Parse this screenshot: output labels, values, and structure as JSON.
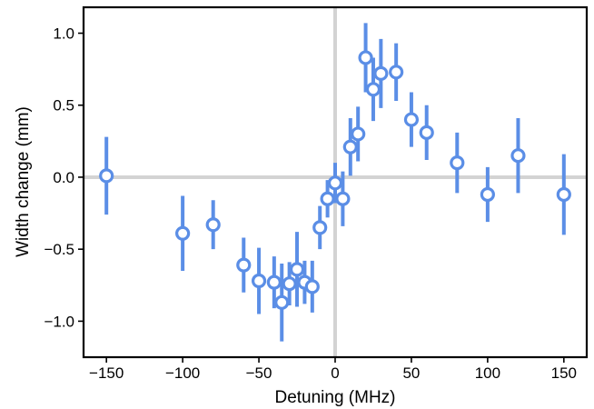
{
  "chart_data": {
    "type": "scatter",
    "title": "",
    "xlabel": "Detuning (MHz)",
    "ylabel": "Width change (mm)",
    "xlim": [
      -165,
      165
    ],
    "ylim": [
      -1.25,
      1.18
    ],
    "xticks": [
      -150,
      -100,
      -50,
      0,
      50,
      100,
      150
    ],
    "xtick_labels": [
      "−150",
      "−100",
      "−50",
      "0",
      "50",
      "100",
      "150"
    ],
    "yticks": [
      -1.0,
      -0.5,
      0.0,
      0.5,
      1.0
    ],
    "ytick_labels": [
      "−1.0",
      "−0.5",
      "0.0",
      "0.5",
      "1.0"
    ],
    "reference_lines": {
      "x": 0,
      "y": 0
    },
    "grid": false,
    "legend": "none",
    "marker": "open-circle",
    "series": [
      {
        "points": [
          {
            "x": -150,
            "y": 0.01,
            "err": 0.27
          },
          {
            "x": -100,
            "y": -0.39,
            "err": 0.26
          },
          {
            "x": -80,
            "y": -0.33,
            "err": 0.17
          },
          {
            "x": -60,
            "y": -0.61,
            "err": 0.19
          },
          {
            "x": -50,
            "y": -0.72,
            "err": 0.23
          },
          {
            "x": -40,
            "y": -0.73,
            "err": 0.18
          },
          {
            "x": -35,
            "y": -0.87,
            "err": 0.27
          },
          {
            "x": -30,
            "y": -0.74,
            "err": 0.15
          },
          {
            "x": -25,
            "y": -0.64,
            "err": 0.26
          },
          {
            "x": -20,
            "y": -0.73,
            "err": 0.15
          },
          {
            "x": -15,
            "y": -0.76,
            "err": 0.18
          },
          {
            "x": -10,
            "y": -0.35,
            "err": 0.15
          },
          {
            "x": -5,
            "y": -0.15,
            "err": 0.13
          },
          {
            "x": 0,
            "y": -0.04,
            "err": 0.14
          },
          {
            "x": 5,
            "y": -0.15,
            "err": 0.19
          },
          {
            "x": 10,
            "y": 0.21,
            "err": 0.2
          },
          {
            "x": 15,
            "y": 0.3,
            "err": 0.19
          },
          {
            "x": 20,
            "y": 0.83,
            "err": 0.24
          },
          {
            "x": 25,
            "y": 0.61,
            "err": 0.22
          },
          {
            "x": 30,
            "y": 0.72,
            "err": 0.24
          },
          {
            "x": 40,
            "y": 0.73,
            "err": 0.2
          },
          {
            "x": 50,
            "y": 0.4,
            "err": 0.19
          },
          {
            "x": 60,
            "y": 0.31,
            "err": 0.19
          },
          {
            "x": 80,
            "y": 0.1,
            "err": 0.21
          },
          {
            "x": 100,
            "y": -0.12,
            "err": 0.19
          },
          {
            "x": 120,
            "y": 0.15,
            "err": 0.26
          },
          {
            "x": 150,
            "y": -0.12,
            "err": 0.28
          }
        ]
      }
    ],
    "colors": {
      "marker": "#5b8ee6",
      "reference_line": "#d3d3d3",
      "axes": "#000000"
    }
  }
}
